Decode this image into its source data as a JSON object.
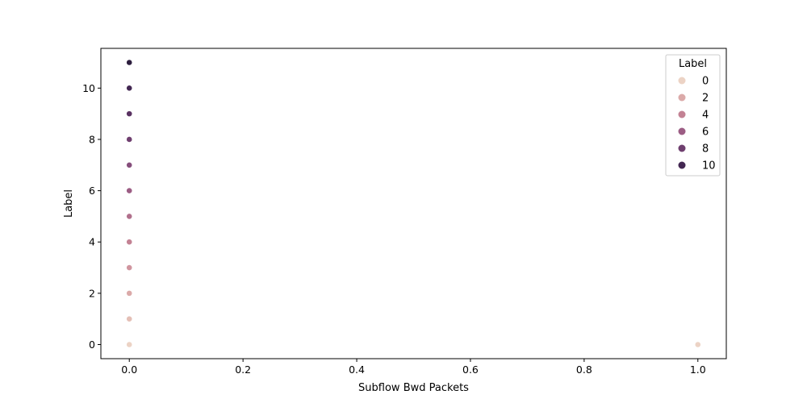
{
  "chart_data": {
    "type": "scatter",
    "title": "",
    "xlabel": "Subflow Bwd Packets",
    "ylabel": "Label",
    "xlim": [
      -0.05,
      1.05
    ],
    "ylim": [
      -0.55,
      11.55
    ],
    "xticks": [
      0.0,
      0.2,
      0.4,
      0.6,
      0.8,
      1.0
    ],
    "xtick_labels": [
      "0.0",
      "0.2",
      "0.4",
      "0.6",
      "0.8",
      "1.0"
    ],
    "yticks": [
      0,
      2,
      4,
      6,
      8,
      10
    ],
    "ytick_labels": [
      "0",
      "2",
      "4",
      "6",
      "8",
      "10"
    ],
    "grid": false,
    "hue": "Label",
    "points": [
      {
        "x": 0.0,
        "y": 0,
        "label": 0
      },
      {
        "x": 0.0,
        "y": 1,
        "label": 1
      },
      {
        "x": 0.0,
        "y": 2,
        "label": 2
      },
      {
        "x": 0.0,
        "y": 3,
        "label": 3
      },
      {
        "x": 0.0,
        "y": 4,
        "label": 4
      },
      {
        "x": 0.0,
        "y": 5,
        "label": 5
      },
      {
        "x": 0.0,
        "y": 6,
        "label": 6
      },
      {
        "x": 0.0,
        "y": 7,
        "label": 7
      },
      {
        "x": 0.0,
        "y": 8,
        "label": 8
      },
      {
        "x": 0.0,
        "y": 9,
        "label": 9
      },
      {
        "x": 0.0,
        "y": 10,
        "label": 10
      },
      {
        "x": 0.0,
        "y": 11,
        "label": 11
      },
      {
        "x": 1.0,
        "y": 0,
        "label": 0
      }
    ],
    "palette": {
      "0": "#ecd3c5",
      "1": "#e4bfb6",
      "2": "#dbaaa9",
      "3": "#d0959f",
      "4": "#c38294",
      "5": "#b1708c",
      "6": "#9c5d84",
      "7": "#864e7c",
      "8": "#6f3f6f",
      "9": "#5a3262",
      "10": "#432752",
      "11": "#2d1e3e"
    },
    "legend": {
      "title": "Label",
      "placement": "top-right",
      "entries": [
        {
          "label": "0",
          "color": "#ecd3c5"
        },
        {
          "label": "2",
          "color": "#dbaaa9"
        },
        {
          "label": "4",
          "color": "#c38294"
        },
        {
          "label": "6",
          "color": "#9c5d84"
        },
        {
          "label": "8",
          "color": "#6f3f6f"
        },
        {
          "label": "10",
          "color": "#432752"
        }
      ]
    }
  }
}
